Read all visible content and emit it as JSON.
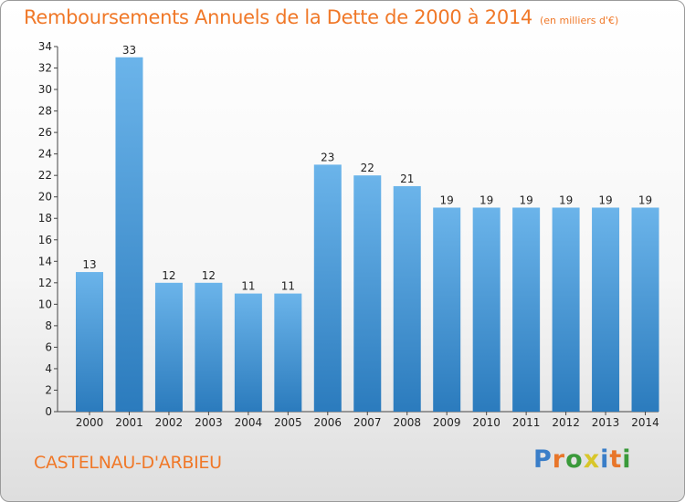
{
  "header": {
    "title": "Remboursements Annuels de la Dette de 2000 à 2014",
    "unit": "(en milliers d'€)"
  },
  "footer": {
    "commune": "CASTELNAU-D'ARBIEU",
    "brand_letters": [
      {
        "char": "P",
        "color": "#3a7ec8"
      },
      {
        "char": "r",
        "color": "#e8762a"
      },
      {
        "char": "o",
        "color": "#3a9a3a"
      },
      {
        "char": "x",
        "color": "#d8c62a"
      },
      {
        "char": "i",
        "color": "#3a7ec8"
      },
      {
        "char": "t",
        "color": "#e8762a"
      },
      {
        "char": "i",
        "color": "#3a9a3a"
      }
    ]
  },
  "chart_data": {
    "type": "bar",
    "categories": [
      "2000",
      "2001",
      "2002",
      "2003",
      "2004",
      "2005",
      "2006",
      "2007",
      "2008",
      "2009",
      "2010",
      "2011",
      "2012",
      "2013",
      "2014"
    ],
    "values": [
      13,
      33,
      12,
      12,
      11,
      11,
      23,
      22,
      21,
      19,
      19,
      19,
      19,
      19,
      19
    ],
    "ylim": [
      0,
      34
    ],
    "ytick_step": 2,
    "grid": false,
    "bar_color_light": "#6bb4ea",
    "bar_color_dark": "#2b7bbd"
  }
}
